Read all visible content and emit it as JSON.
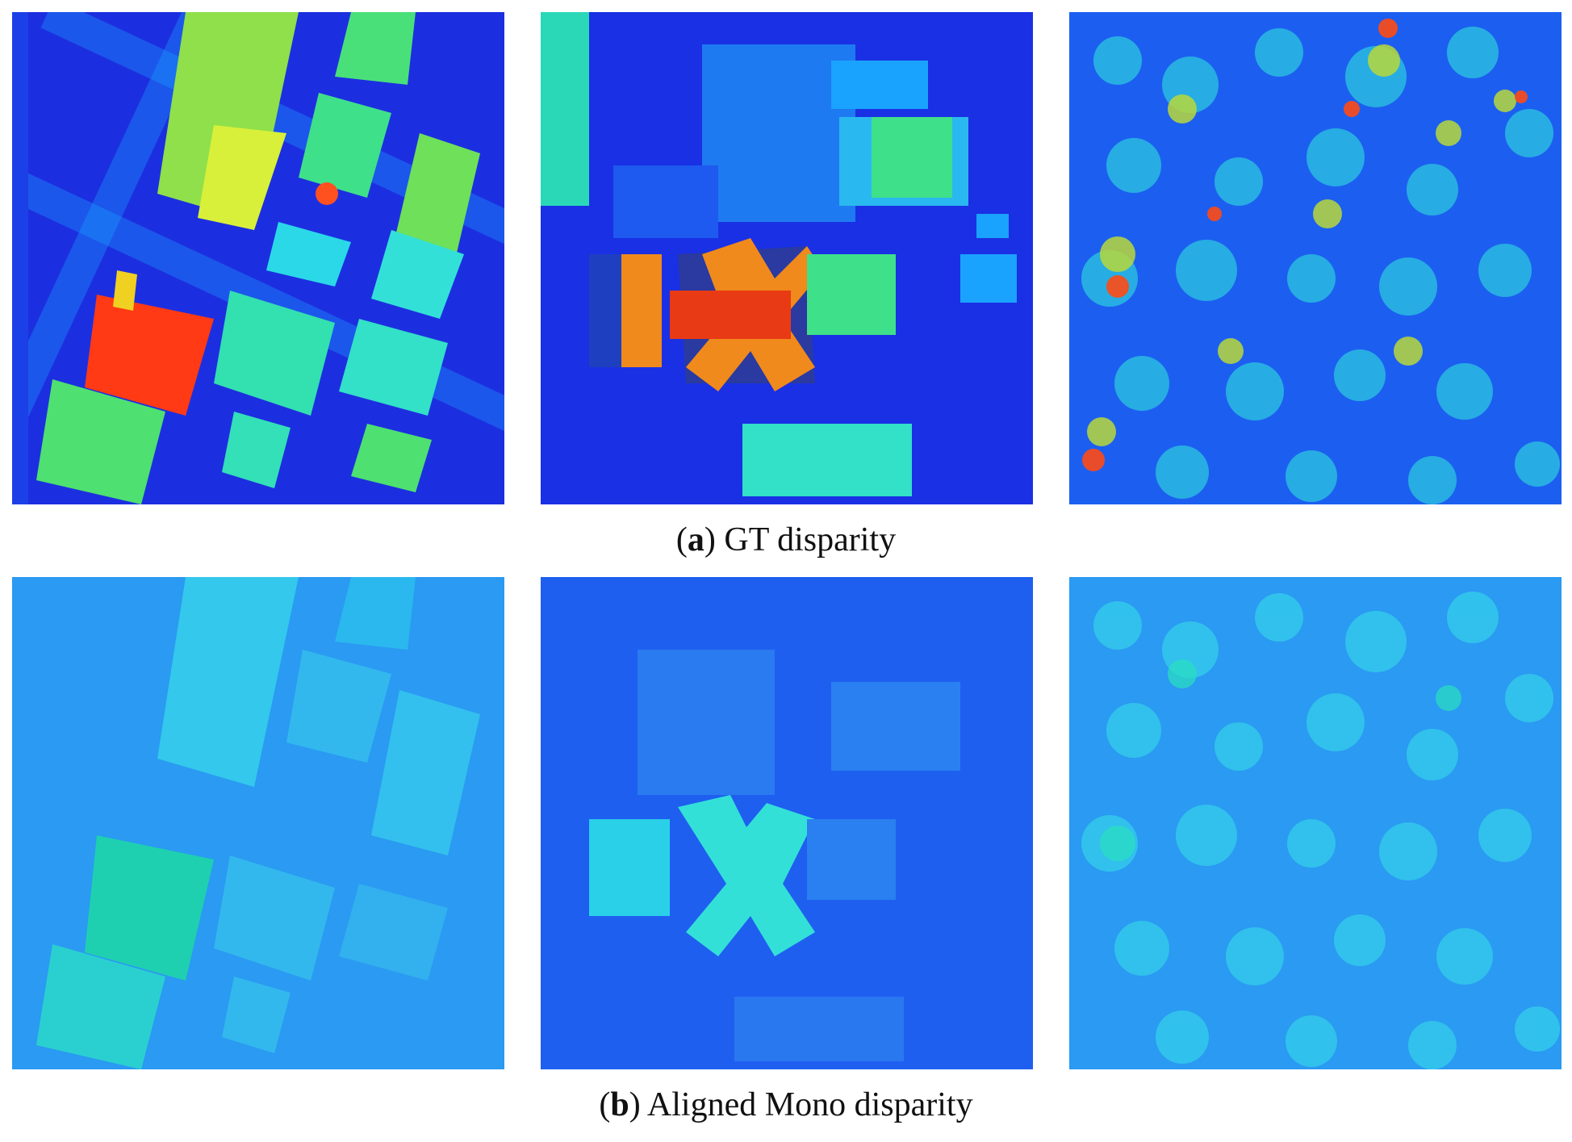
{
  "captions": {
    "a": {
      "letter": "a",
      "text": ") GT disparity",
      "open": "("
    },
    "b": {
      "letter": "b",
      "text": ") Aligned Mono disparity",
      "open": "("
    }
  },
  "colors": {
    "gt_background": "#1a33e6",
    "mono_background": "#2a8ff0",
    "high": "#ff3a14",
    "orange": "#f08a1c",
    "green": "#3fe07a",
    "cyan": "#33e0d8",
    "yellow": "#d8f03a"
  },
  "rows": [
    {
      "name": "gt-disparity",
      "panels": [
        "urban-block",
        "campus-building",
        "forest-canopy"
      ]
    },
    {
      "name": "aligned-mono-disparity",
      "panels": [
        "urban-block",
        "campus-building",
        "forest-canopy"
      ]
    }
  ]
}
